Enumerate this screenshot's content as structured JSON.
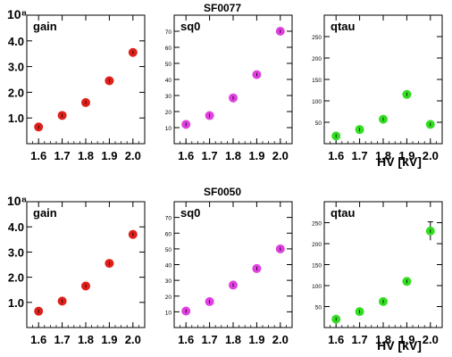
{
  "figure": {
    "rows": [
      {
        "title": "SF0077",
        "exponent": "10⁸",
        "xlabel": "HV [kV]"
      },
      {
        "title": "SF0050",
        "exponent": "10⁸",
        "xlabel": "HV [kV]"
      }
    ]
  },
  "chart_data": [
    {
      "type": "scatter",
      "row": 0,
      "panel": 0,
      "label": "gain",
      "color": "#e0201a",
      "x": [
        1.6,
        1.7,
        1.8,
        1.9,
        2.0
      ],
      "y": [
        0.65,
        1.1,
        1.6,
        2.45,
        3.55
      ],
      "xlim": [
        1.55,
        2.05
      ],
      "ylim": [
        0,
        5
      ],
      "xticks": [
        "1.6",
        "1.7",
        "1.8",
        "1.9",
        "2.0"
      ],
      "yticks": [
        {
          "v": 1,
          "t": "1.0"
        },
        {
          "v": 2,
          "t": "2.0"
        },
        {
          "v": 3,
          "t": "3.0"
        },
        {
          "v": 4,
          "t": "4.0"
        }
      ]
    },
    {
      "type": "scatter",
      "row": 0,
      "panel": 1,
      "label": "sq0",
      "color": "#e040e0",
      "x": [
        1.6,
        1.7,
        1.8,
        1.9,
        2.0
      ],
      "y": [
        12,
        17.5,
        28.5,
        43,
        70
      ],
      "xlim": [
        1.55,
        2.05
      ],
      "ylim": [
        0,
        80
      ],
      "xticks": [
        "1.6",
        "1.7",
        "1.8",
        "1.9",
        "2.0"
      ],
      "yticks": [
        {
          "v": 10,
          "t": "10"
        },
        {
          "v": 20,
          "t": "20"
        },
        {
          "v": 30,
          "t": "30"
        },
        {
          "v": 40,
          "t": "40"
        },
        {
          "v": 50,
          "t": "50"
        },
        {
          "v": 60,
          "t": "60"
        },
        {
          "v": 70,
          "t": "70"
        }
      ]
    },
    {
      "type": "scatter",
      "row": 0,
      "panel": 2,
      "label": "qtau",
      "color": "#33dd22",
      "x": [
        1.6,
        1.7,
        1.8,
        1.9,
        2.0
      ],
      "y": [
        18,
        33,
        57,
        115,
        45
      ],
      "xlim": [
        1.55,
        2.05
      ],
      "ylim": [
        0,
        300
      ],
      "xticks": [
        "1.6",
        "1.7",
        "1.8",
        "1.9",
        "2.0"
      ],
      "yticks": [
        {
          "v": 50,
          "t": "50"
        },
        {
          "v": 100,
          "t": "100"
        },
        {
          "v": 150,
          "t": "150"
        },
        {
          "v": 200,
          "t": "200"
        },
        {
          "v": 250,
          "t": "250"
        }
      ]
    },
    {
      "type": "scatter",
      "row": 1,
      "panel": 0,
      "label": "gain",
      "color": "#e0201a",
      "x": [
        1.6,
        1.7,
        1.8,
        1.9,
        2.0
      ],
      "y": [
        0.65,
        1.05,
        1.65,
        2.55,
        3.7
      ],
      "xlim": [
        1.55,
        2.05
      ],
      "ylim": [
        0,
        5
      ],
      "xticks": [
        "1.6",
        "1.7",
        "1.8",
        "1.9",
        "2.0"
      ],
      "yticks": [
        {
          "v": 1,
          "t": "1.0"
        },
        {
          "v": 2,
          "t": "2.0"
        },
        {
          "v": 3,
          "t": "3.0"
        },
        {
          "v": 4,
          "t": "4.0"
        }
      ]
    },
    {
      "type": "scatter",
      "row": 1,
      "panel": 1,
      "label": "sq0",
      "color": "#e040e0",
      "x": [
        1.6,
        1.7,
        1.8,
        1.9,
        2.0
      ],
      "y": [
        10.5,
        16.5,
        27,
        37.5,
        50
      ],
      "xlim": [
        1.55,
        2.05
      ],
      "ylim": [
        0,
        80
      ],
      "xticks": [
        "1.6",
        "1.7",
        "1.8",
        "1.9",
        "2.0"
      ],
      "yticks": [
        {
          "v": 10,
          "t": "10"
        },
        {
          "v": 20,
          "t": "20"
        },
        {
          "v": 30,
          "t": "30"
        },
        {
          "v": 40,
          "t": "40"
        },
        {
          "v": 50,
          "t": "50"
        },
        {
          "v": 60,
          "t": "60"
        },
        {
          "v": 70,
          "t": "70"
        }
      ]
    },
    {
      "type": "scatter",
      "row": 1,
      "panel": 2,
      "label": "qtau",
      "color": "#33dd22",
      "x": [
        1.6,
        1.7,
        1.8,
        1.9,
        2.0
      ],
      "y": [
        20,
        38,
        62,
        110,
        230
      ],
      "yerr": [
        0,
        0,
        0,
        0,
        22
      ],
      "xlim": [
        1.55,
        2.05
      ],
      "ylim": [
        0,
        300
      ],
      "xticks": [
        "1.6",
        "1.7",
        "1.8",
        "1.9",
        "2.0"
      ],
      "yticks": [
        {
          "v": 50,
          "t": "50"
        },
        {
          "v": 100,
          "t": "100"
        },
        {
          "v": 150,
          "t": "150"
        },
        {
          "v": 200,
          "t": "200"
        },
        {
          "v": 250,
          "t": "250"
        }
      ]
    }
  ]
}
